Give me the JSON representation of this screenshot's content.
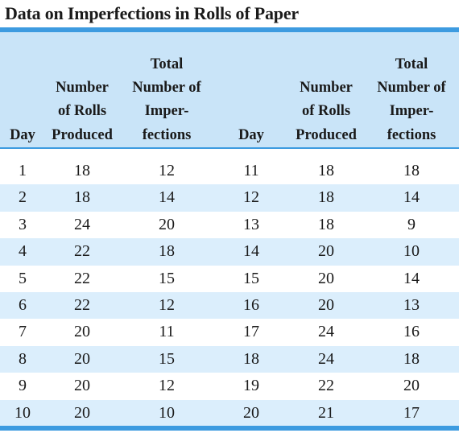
{
  "title": "Data on Imperfections in Rolls of Paper",
  "headers": {
    "day": [
      "Day"
    ],
    "rolls": [
      "Number",
      "of Rolls",
      "Produced"
    ],
    "imperfections": [
      "Total",
      "Number of",
      "Imper-",
      "fections"
    ]
  },
  "rows": [
    [
      "1",
      "18",
      "12",
      "11",
      "18",
      "18"
    ],
    [
      "2",
      "18",
      "14",
      "12",
      "18",
      "14"
    ],
    [
      "3",
      "24",
      "20",
      "13",
      "18",
      "9"
    ],
    [
      "4",
      "22",
      "18",
      "14",
      "20",
      "10"
    ],
    [
      "5",
      "22",
      "15",
      "15",
      "20",
      "14"
    ],
    [
      "6",
      "22",
      "12",
      "16",
      "20",
      "13"
    ],
    [
      "7",
      "20",
      "11",
      "17",
      "24",
      "16"
    ],
    [
      "8",
      "20",
      "15",
      "18",
      "24",
      "18"
    ],
    [
      "9",
      "20",
      "12",
      "19",
      "22",
      "20"
    ],
    [
      "10",
      "20",
      "10",
      "20",
      "21",
      "17"
    ]
  ],
  "colors": {
    "accent_rule": "#3d9be0",
    "header_fill": "#c9e4f8",
    "alt_row_fill": "#dbeefc"
  }
}
